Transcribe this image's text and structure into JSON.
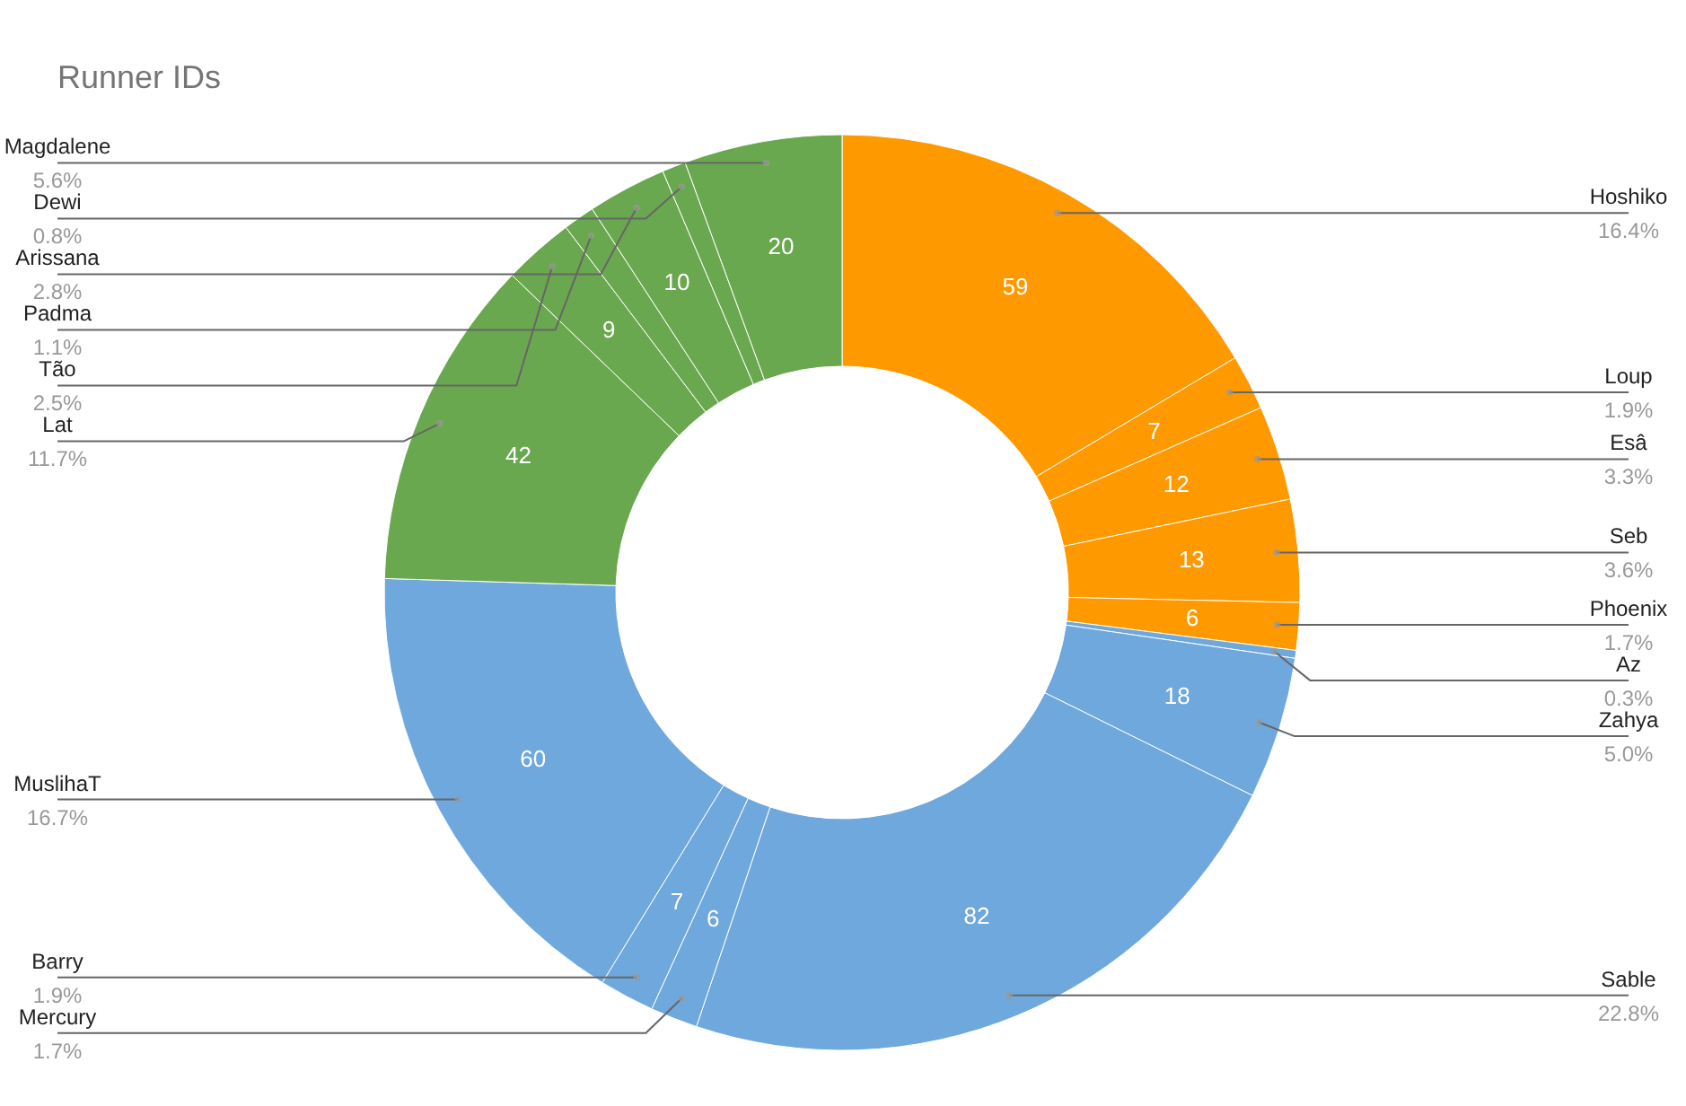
{
  "chart_data": {
    "type": "donut",
    "title": "Runner IDs",
    "categories": [
      "Hoshiko",
      "Loup",
      "Esâ",
      "Seb",
      "Phoenix",
      "Az",
      "Zahya",
      "Sable",
      "Mercury",
      "Barry",
      "MuslihaT",
      "Lat",
      "Tão",
      "Padma",
      "Arissana",
      "Dewi",
      "Magdalene"
    ],
    "values": [
      59,
      7,
      12,
      13,
      6,
      1,
      18,
      82,
      6,
      7,
      60,
      42,
      9,
      4,
      10,
      3,
      20
    ],
    "value_labels": [
      "59",
      "7",
      "12",
      "13",
      "6",
      null,
      "18",
      "82",
      "6",
      "7",
      "60",
      "42",
      "9",
      null,
      "10",
      null,
      "20"
    ],
    "colors": [
      "#ff9900",
      "#ff9900",
      "#ff9900",
      "#ff9900",
      "#ff9900",
      "#6fa8dc",
      "#6fa8dc",
      "#6fa8dc",
      "#6fa8dc",
      "#6fa8dc",
      "#6fa8dc",
      "#6aa84f",
      "#6aa84f",
      "#6aa84f",
      "#6aa84f",
      "#6aa84f",
      "#6aa84f"
    ],
    "annotations": [
      {
        "text": "16.4%",
        "x": "Hoshiko"
      },
      {
        "text": "1.9%",
        "x": "Loup"
      },
      {
        "text": "3.3%",
        "x": "Esâ"
      },
      {
        "text": "3.6%",
        "x": "Seb"
      },
      {
        "text": "1.7%",
        "x": "Phoenix"
      },
      {
        "text": "0.3%",
        "x": "Az"
      },
      {
        "text": "5.0%",
        "x": "Zahya"
      },
      {
        "text": "22.8%",
        "x": "Sable"
      },
      {
        "text": "1.7%",
        "x": "Mercury"
      },
      {
        "text": "1.9%",
        "x": "Barry"
      },
      {
        "text": "16.7%",
        "x": "MuslihaT"
      },
      {
        "text": "11.7%",
        "x": "Lat"
      },
      {
        "text": "2.5%",
        "x": "Tão"
      },
      {
        "text": "1.1%",
        "x": "Padma"
      },
      {
        "text": "2.8%",
        "x": "Arissana"
      },
      {
        "text": "0.8%",
        "x": "Dewi"
      },
      {
        "text": "5.6%",
        "x": "Magdalene"
      }
    ]
  }
}
